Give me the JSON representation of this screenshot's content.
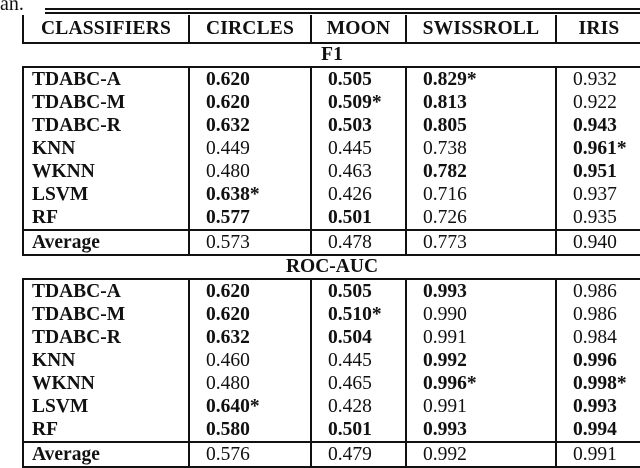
{
  "caption_fragment": "an.",
  "colors": {
    "text": "#111111",
    "border": "#111111",
    "background": "#ffffff"
  },
  "table": {
    "columns": [
      "CLASSIFIERS",
      "CIRCLES",
      "MOON",
      "SWISSROLL",
      "IRIS"
    ],
    "sections": [
      {
        "title": "F1",
        "rows": [
          {
            "name": "TDABC-A",
            "values": [
              "0.620",
              "0.505",
              "0.829*",
              "0.932"
            ],
            "bold": [
              true,
              true,
              true,
              false
            ]
          },
          {
            "name": "TDABC-M",
            "values": [
              "0.620",
              "0.509*",
              "0.813",
              "0.922"
            ],
            "bold": [
              true,
              true,
              true,
              false
            ]
          },
          {
            "name": "TDABC-R",
            "values": [
              "0.632",
              "0.503",
              "0.805",
              "0.943"
            ],
            "bold": [
              true,
              true,
              true,
              true
            ]
          },
          {
            "name": "KNN",
            "values": [
              "0.449",
              "0.445",
              "0.738",
              "0.961*"
            ],
            "bold": [
              false,
              false,
              false,
              true
            ]
          },
          {
            "name": "WKNN",
            "values": [
              "0.480",
              "0.463",
              "0.782",
              "0.951"
            ],
            "bold": [
              false,
              false,
              true,
              true
            ]
          },
          {
            "name": "LSVM",
            "values": [
              "0.638*",
              "0.426",
              "0.716",
              "0.937"
            ],
            "bold": [
              true,
              false,
              false,
              false
            ]
          },
          {
            "name": "RF",
            "values": [
              "0.577",
              "0.501",
              "0.726",
              "0.935"
            ],
            "bold": [
              true,
              true,
              false,
              false
            ]
          }
        ],
        "average": {
          "name": "Average",
          "values": [
            "0.573",
            "0.478",
            "0.773",
            "0.940"
          ]
        }
      },
      {
        "title": "ROC-AUC",
        "rows": [
          {
            "name": "TDABC-A",
            "values": [
              "0.620",
              "0.505",
              "0.993",
              "0.986"
            ],
            "bold": [
              true,
              true,
              true,
              false
            ]
          },
          {
            "name": "TDABC-M",
            "values": [
              "0.620",
              "0.510*",
              "0.990",
              "0.986"
            ],
            "bold": [
              true,
              true,
              false,
              false
            ]
          },
          {
            "name": "TDABC-R",
            "values": [
              "0.632",
              "0.504",
              "0.991",
              "0.984"
            ],
            "bold": [
              true,
              true,
              false,
              false
            ]
          },
          {
            "name": "KNN",
            "values": [
              "0.460",
              "0.445",
              "0.992",
              "0.996"
            ],
            "bold": [
              false,
              false,
              true,
              true
            ]
          },
          {
            "name": "WKNN",
            "values": [
              "0.480",
              "0.465",
              "0.996*",
              "0.998*"
            ],
            "bold": [
              false,
              false,
              true,
              true
            ]
          },
          {
            "name": "LSVM",
            "values": [
              "0.640*",
              "0.428",
              "0.991",
              "0.993"
            ],
            "bold": [
              true,
              false,
              false,
              true
            ]
          },
          {
            "name": "RF",
            "values": [
              "0.580",
              "0.501",
              "0.993",
              "0.994"
            ],
            "bold": [
              true,
              true,
              true,
              true
            ]
          }
        ],
        "average": {
          "name": "Average",
          "values": [
            "0.576",
            "0.479",
            "0.992",
            "0.991"
          ]
        }
      }
    ]
  }
}
